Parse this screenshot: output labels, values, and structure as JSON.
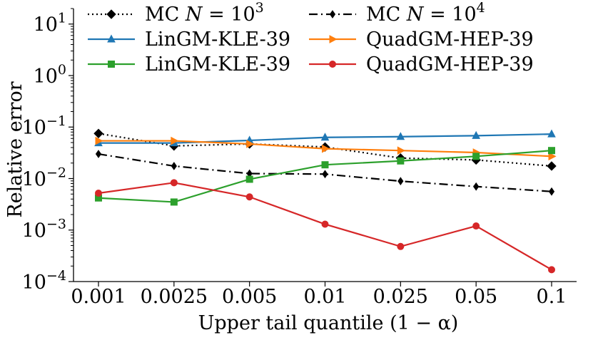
{
  "chart_data": {
    "type": "line",
    "title": "",
    "xlabel": "Upper tail quantile (1 − α)",
    "ylabel": "Relative error",
    "yscale": "log",
    "ylim": [
      0.0001,
      20
    ],
    "grid": false,
    "legend_position": "top",
    "legend_columns": 2,
    "categories": [
      "0.001",
      "0.0025",
      "0.005",
      "0.01",
      "0.025",
      "0.05",
      "0.1"
    ],
    "y_ticks": [
      {
        "value": 0.0001,
        "base": "10",
        "exp": "−4"
      },
      {
        "value": 0.001,
        "base": "10",
        "exp": "−3"
      },
      {
        "value": 0.01,
        "base": "10",
        "exp": "−2"
      },
      {
        "value": 0.1,
        "base": "10",
        "exp": "−1"
      },
      {
        "value": 1,
        "base": "10",
        "exp": "0"
      },
      {
        "value": 10,
        "base": "10",
        "exp": "1"
      }
    ],
    "series": [
      {
        "name": "MC N = 10^3",
        "label_prefix": "MC ",
        "label_math": "N",
        "label_eq": " = 10",
        "label_sup": "3",
        "color": "#000000",
        "marker": "diamond",
        "linestyle": "dotted",
        "values": [
          0.075,
          0.043,
          0.047,
          0.041,
          0.025,
          0.023,
          0.0175
        ]
      },
      {
        "name": "MC N = 10^4",
        "label_prefix": "MC ",
        "label_math": "N",
        "label_eq": " = 10",
        "label_sup": "4",
        "color": "#000000",
        "marker": "thin-diamond",
        "linestyle": "dashdot",
        "values": [
          0.03,
          0.0175,
          0.0125,
          0.0122,
          0.0089,
          0.007,
          0.0056
        ]
      },
      {
        "name": "LinGM-KLE-39",
        "label_prefix": "LinGM-KLE-39",
        "color": "#1f77b4",
        "marker": "triangle-up",
        "linestyle": "solid",
        "values": [
          0.049,
          0.049,
          0.055,
          0.063,
          0.065,
          0.068,
          0.073
        ]
      },
      {
        "name": "QuadGM-HEP-39",
        "label_prefix": "QuadGM-HEP-39",
        "color": "#ff7f0e",
        "marker": "triangle-right",
        "linestyle": "solid",
        "values": [
          0.054,
          0.054,
          0.047,
          0.038,
          0.035,
          0.032,
          0.027
        ]
      },
      {
        "name": "LinGM-KLE-39",
        "label_prefix": "LinGM-KLE-39",
        "color": "#2ca02c",
        "marker": "square",
        "linestyle": "solid",
        "values": [
          0.0042,
          0.0035,
          0.0097,
          0.0185,
          0.022,
          0.027,
          0.035
        ]
      },
      {
        "name": "QuadGM-HEP-39",
        "label_prefix": "QuadGM-HEP-39",
        "color": "#d62728",
        "marker": "circle",
        "linestyle": "solid",
        "values": [
          0.0052,
          0.0083,
          0.0044,
          0.0013,
          0.00048,
          0.0012,
          0.00017
        ]
      }
    ]
  }
}
